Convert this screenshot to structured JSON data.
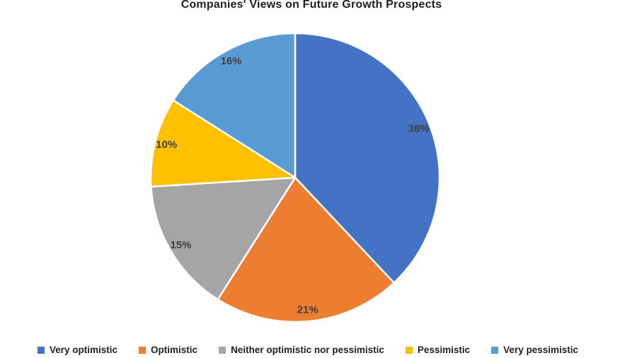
{
  "chart_data": {
    "type": "pie",
    "title": "Companies' Views on Future Growth Prospects",
    "categories": [
      "Very optimistic",
      "Optimistic",
      "Neither optimistic nor pessimistic",
      "Pessimistic",
      "Very pessimistic"
    ],
    "values": [
      38,
      21,
      15,
      10,
      16
    ],
    "data_labels": [
      "38%",
      "21%",
      "15%",
      "10%",
      "16%"
    ],
    "colors": [
      "#4472C4",
      "#ED7D31",
      "#A5A5A5",
      "#FFC000",
      "#5B9BD5"
    ],
    "start_angle_deg": 0,
    "direction": "clockwise",
    "legend_position": "bottom",
    "slice_border_color": "#FFFFFF",
    "data_label_color": "#404040"
  }
}
